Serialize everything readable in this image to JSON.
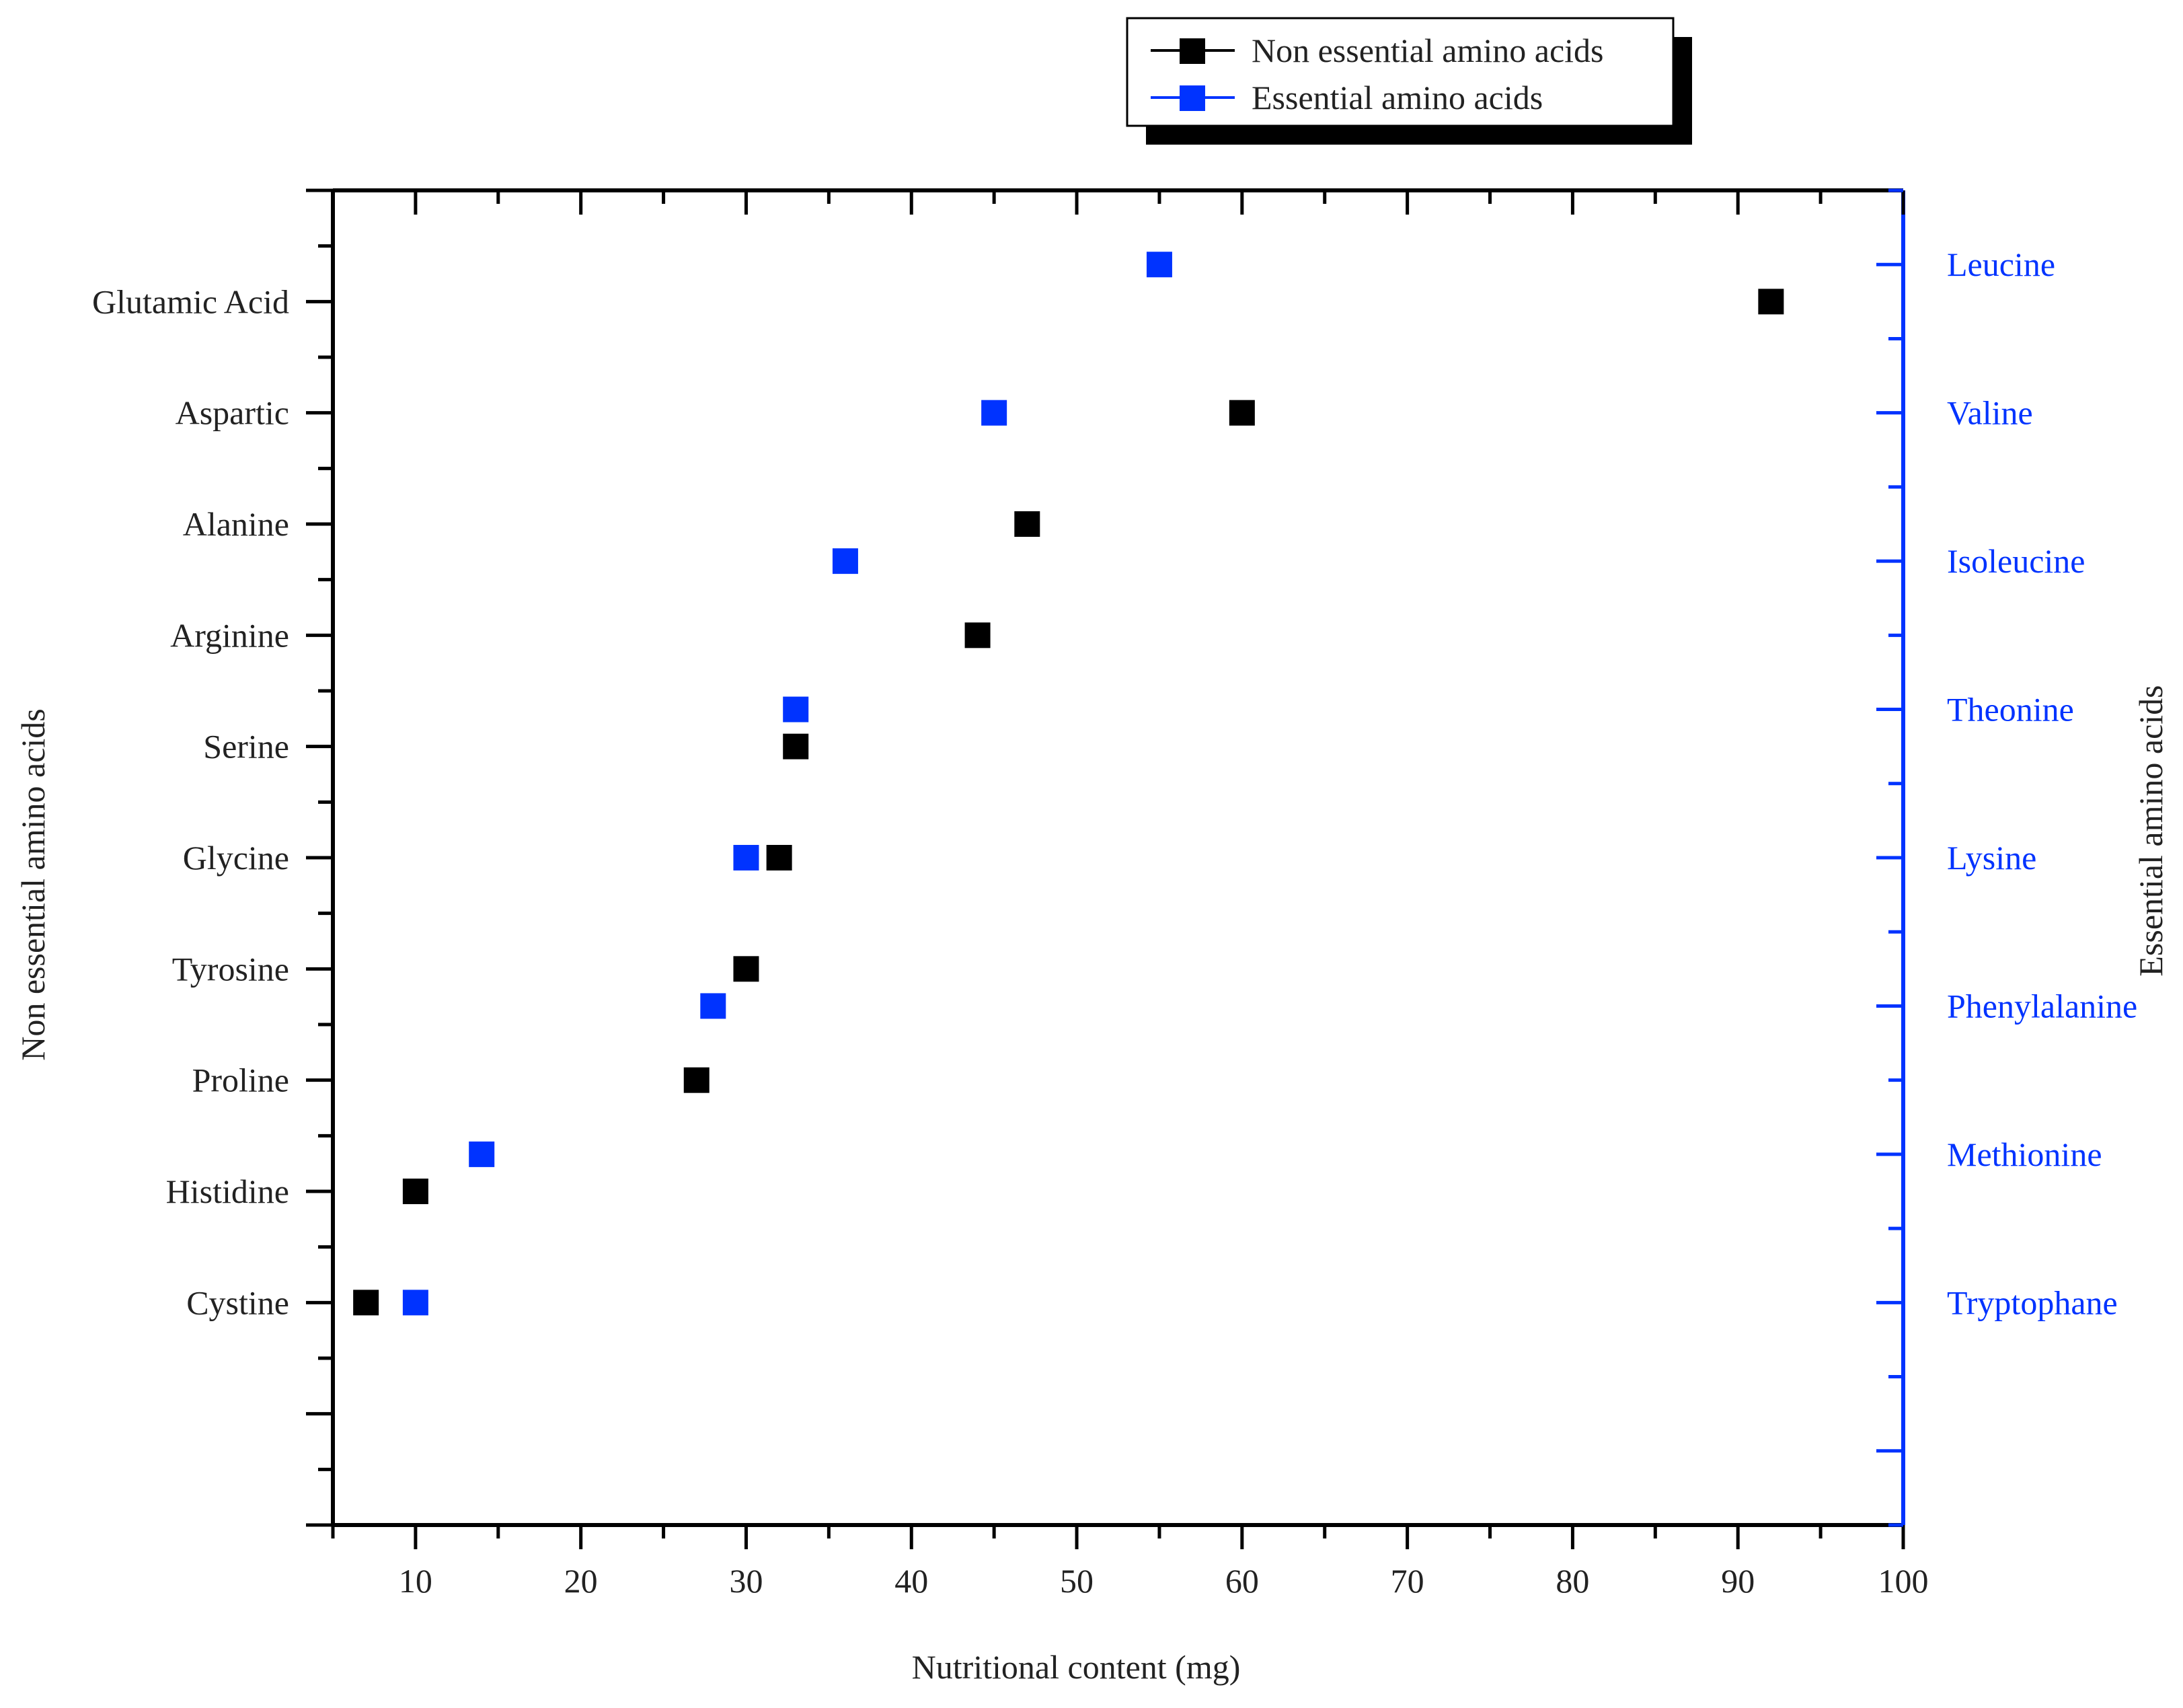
{
  "chart_data": {
    "type": "scatter",
    "xlabel": "Nutritional content (mg)",
    "ylabel_left": "Non essential amino acids",
    "ylabel_right": "Essential amino acids",
    "xlim": [
      5,
      100
    ],
    "x_ticks": [
      10,
      20,
      30,
      40,
      50,
      60,
      70,
      80,
      90,
      100
    ],
    "grid": false,
    "legend_position": "top-center, above plot",
    "colors": {
      "non_essential": "#000000",
      "essential": "#0033ff"
    },
    "series": [
      {
        "name": "Non essential amino acids",
        "axis": "left",
        "categories": [
          "Glutamic Acid",
          "Aspartic",
          "Alanine",
          "Arginine",
          "Serine",
          "Glycine",
          "Tyrosine",
          "Proline",
          "Histidine",
          "Cystine"
        ],
        "values": [
          92,
          60,
          47,
          44,
          33,
          32,
          30,
          27,
          10,
          7
        ]
      },
      {
        "name": "Essential amino acids",
        "axis": "right",
        "categories": [
          "Leucine",
          "Valine",
          "Isoleucine",
          "Theonine",
          "Lysine",
          "Phenylalanine",
          "Methionine",
          "Tryptophane"
        ],
        "values": [
          55,
          45,
          36,
          33,
          30,
          28,
          14,
          10
        ]
      }
    ]
  }
}
